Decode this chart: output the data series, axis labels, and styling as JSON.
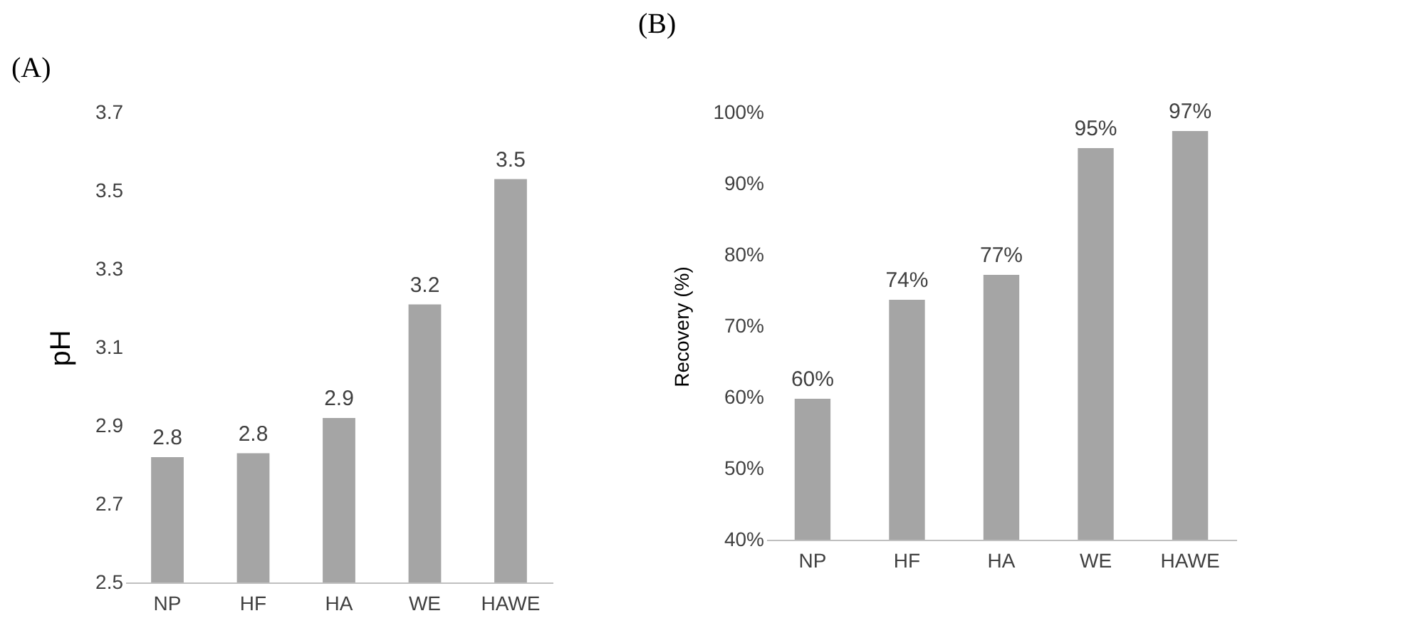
{
  "chart_data": [
    {
      "type": "bar",
      "title": "(A)",
      "ylabel": "pH",
      "categories": [
        "NP",
        "HF",
        "HA",
        "WE",
        "HAWE"
      ],
      "values": [
        2.82,
        2.83,
        2.92,
        3.21,
        3.53
      ],
      "value_labels": [
        "2.8",
        "2.8",
        "2.9",
        "3.2",
        "3.5"
      ],
      "color": "#a5a5a5",
      "ylim": [
        2.5,
        3.7
      ],
      "yticks": [
        2.5,
        2.7,
        2.9,
        3.1,
        3.3,
        3.5,
        3.7
      ]
    },
    {
      "type": "bar",
      "title": "(B)",
      "ylabel": "Recovery (%)",
      "categories": [
        "NP",
        "HF",
        "HA",
        "WE",
        "HAWE"
      ],
      "values": [
        59.8,
        73.7,
        77.2,
        95,
        97.4
      ],
      "value_labels": [
        "60%",
        "74%",
        "77%",
        "95%",
        "97%"
      ],
      "color": "#a5a5a5",
      "ylim": [
        40,
        100
      ],
      "yticks": [
        {
          "value": 40,
          "label": "40%"
        },
        {
          "value": 50,
          "label": "50%"
        },
        {
          "value": 60,
          "label": "60%"
        },
        {
          "value": 70,
          "label": "70%"
        },
        {
          "value": 80,
          "label": "80%"
        },
        {
          "value": 90,
          "label": "90%"
        },
        {
          "value": 100,
          "label": "100%"
        }
      ]
    }
  ]
}
